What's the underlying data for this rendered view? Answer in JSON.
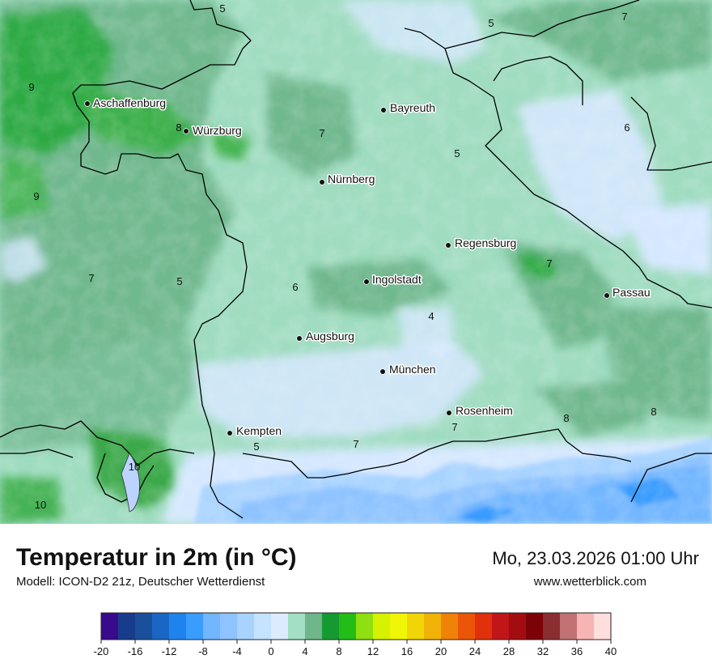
{
  "title": "Temperatur in 2m (in °C)",
  "model": "Modell: ICON-D2 21z, Deutscher Wetterdienst",
  "datetime": "Mo, 23.03.2026 01:00 Uhr",
  "website": "www.wetterblick.com",
  "cities": [
    {
      "name": "Aschaffenburg"
    },
    {
      "name": "Würzburg"
    },
    {
      "name": "Bayreuth"
    },
    {
      "name": "Nürnberg"
    },
    {
      "name": "Regensburg"
    },
    {
      "name": "Ingolstadt"
    },
    {
      "name": "Passau"
    },
    {
      "name": "Augsburg"
    },
    {
      "name": "München"
    },
    {
      "name": "Rosenheim"
    },
    {
      "name": "Kempten"
    }
  ],
  "value_labels": [
    "5",
    "5",
    "7",
    "9",
    "8",
    "7",
    "6",
    "5",
    "9",
    "7",
    "5",
    "6",
    "7",
    "4",
    "7",
    "8",
    "8",
    "7",
    "5",
    "7",
    "10",
    "10"
  ],
  "legend": {
    "ticks": [
      "-20",
      "-16",
      "-12",
      "-8",
      "-4",
      "0",
      "4",
      "8",
      "12",
      "16",
      "20",
      "24",
      "28",
      "32",
      "36",
      "40"
    ],
    "colors": [
      "#3a0a8c",
      "#183c8c",
      "#1a4f9c",
      "#1a66c4",
      "#1f83ee",
      "#3a9cff",
      "#72b6ff",
      "#8ec3ff",
      "#a8d3ff",
      "#c5e2ff",
      "#dcebff",
      "#a3dfc3",
      "#6fb68b",
      "#159a32",
      "#22bd16",
      "#90df10",
      "#d6f200",
      "#f1f506",
      "#f2d507",
      "#f1b208",
      "#f08207",
      "#ec5508",
      "#e0300c",
      "#c0161a",
      "#a30d12",
      "#7d0207",
      "#8a2e31",
      "#c27273",
      "#f6b5b2",
      "#ffdede"
    ]
  }
}
